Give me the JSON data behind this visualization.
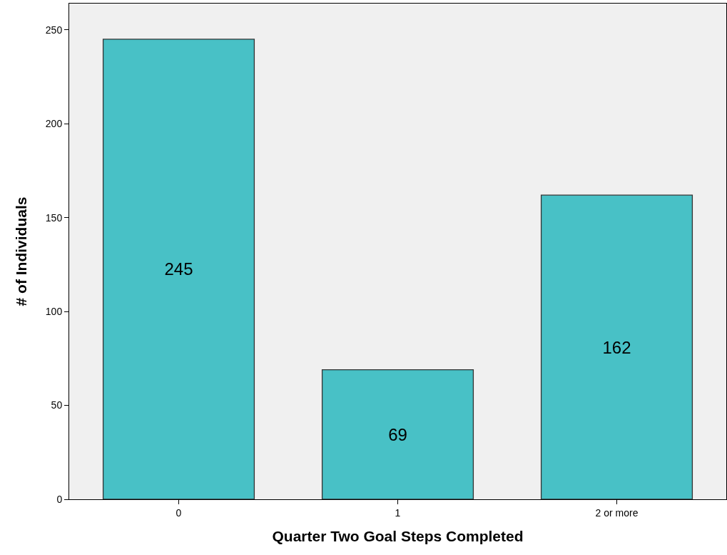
{
  "chart_data": {
    "type": "bar",
    "xlabel": "Quarter Two Goal Steps Completed",
    "ylabel": "# of Individuals",
    "categories": [
      "0",
      "1",
      "2 or more"
    ],
    "values": [
      245,
      69,
      162
    ],
    "color": "#48c1c6",
    "ylim": [
      0,
      264
    ],
    "yticks": [
      0,
      50,
      100,
      150,
      200,
      250
    ],
    "grid": false,
    "data_labels": true
  }
}
